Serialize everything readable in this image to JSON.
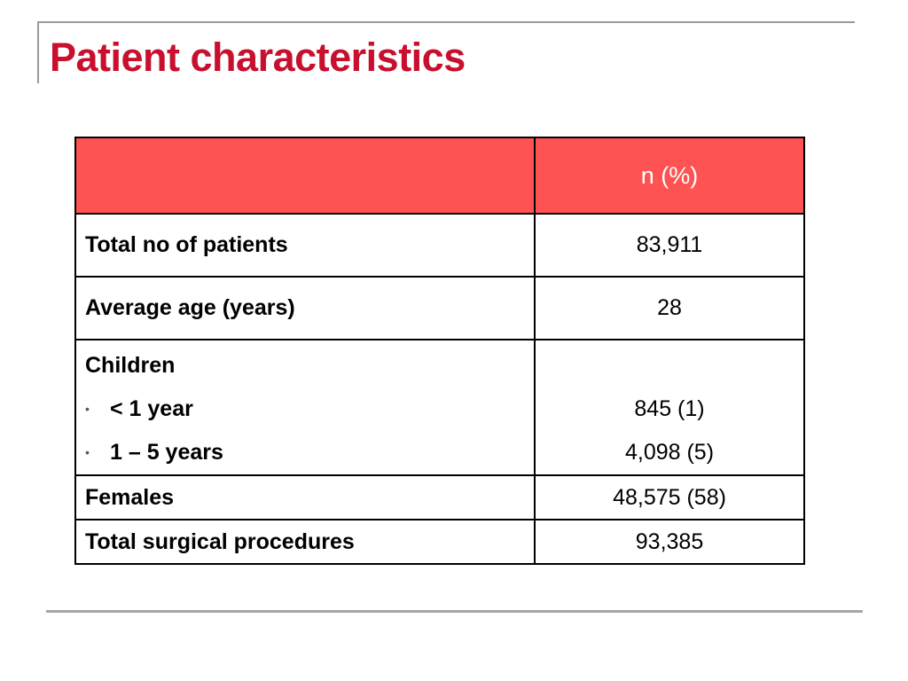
{
  "slide": {
    "title": "Patient characteristics"
  },
  "table": {
    "header": {
      "label": "",
      "value": "n (%)"
    },
    "rows": [
      {
        "label": "Total no of patients",
        "value": "83,911"
      },
      {
        "label": "Average age (years)",
        "value": "28"
      },
      {
        "label": "Children",
        "value": "",
        "subrows": [
          {
            "bullet": "•",
            "label": "< 1 year",
            "value": "845 (1)"
          },
          {
            "bullet": "•",
            "label": "1 – 5 years",
            "value": "4,098 (5)"
          }
        ]
      },
      {
        "label": "Females",
        "value": "48,575 (58)"
      },
      {
        "label": "Total surgical procedures",
        "value": "93,385"
      }
    ]
  },
  "colors": {
    "title": "#c8102e",
    "header_fill": "#ff5252",
    "header_text": "#ffffff",
    "rule": "#a6a6a6"
  }
}
